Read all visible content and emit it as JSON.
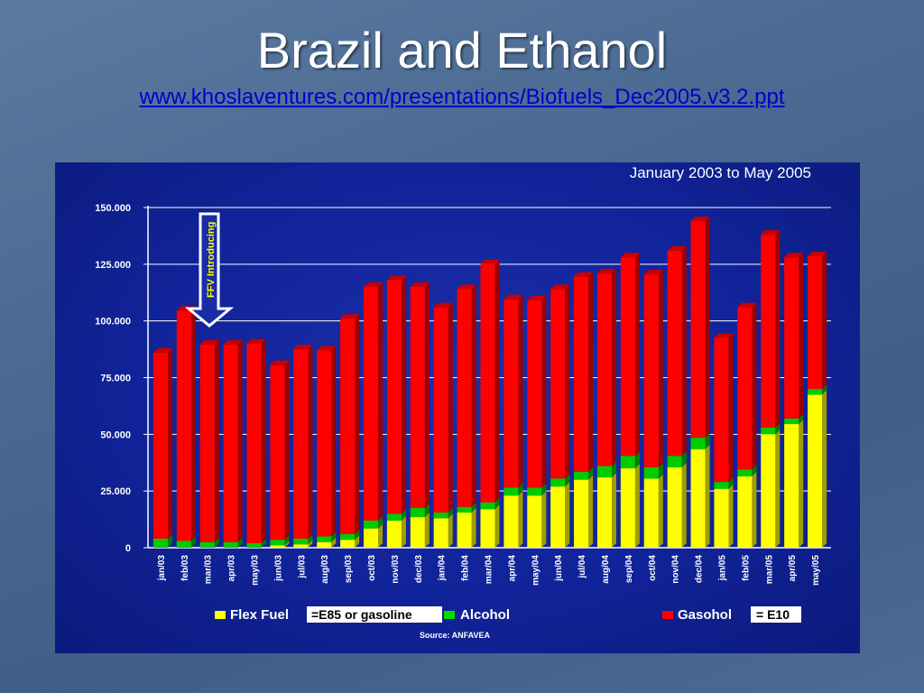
{
  "slide": {
    "title": "Brazil and Ethanol",
    "link": "www.khoslaventures.com/presentations/Biofuels_Dec2005.v3.2.ppt"
  },
  "chart_data": {
    "type": "bar",
    "stacked": true,
    "title": "January 2003 to May 2005",
    "source": "Source: ANFAVEA",
    "annotation": "FFV Introducing",
    "ylim": [
      0,
      150000
    ],
    "yticks": [
      "0",
      "25.000",
      "50.000",
      "75.000",
      "100.000",
      "125.000",
      "150.000"
    ],
    "categories": [
      "jan/03",
      "feb/03",
      "mar/03",
      "apr/03",
      "may/03",
      "jun/03",
      "jul/03",
      "aug/03",
      "sep/03",
      "oct/03",
      "nov/03",
      "dec/03",
      "jan/04",
      "feb/04",
      "mar/04",
      "apr/04",
      "may/04",
      "jun/04",
      "jul/04",
      "aug/04",
      "sep/04",
      "oct/04",
      "nov/04",
      "dec/04",
      "jan/05",
      "feb/05",
      "mar/05",
      "apr/05",
      "may/05"
    ],
    "series": [
      {
        "name": "Flex Fuel",
        "color": "#ffff00",
        "values": [
          0,
          0,
          0,
          0,
          0,
          1000,
          1500,
          2500,
          3500,
          8500,
          12000,
          13500,
          13000,
          15500,
          17000,
          23000,
          23000,
          27000,
          30000,
          31000,
          35000,
          30500,
          35500,
          43500,
          26000,
          31500,
          50000,
          54500,
          67500
        ]
      },
      {
        "name": "Alcohol",
        "color": "#00cc00",
        "values": [
          4000,
          3000,
          2500,
          2500,
          2000,
          2500,
          2500,
          2500,
          2500,
          3500,
          3000,
          4000,
          2500,
          2500,
          3000,
          3500,
          3500,
          3500,
          3500,
          5000,
          5500,
          5000,
          5000,
          5000,
          3000,
          3000,
          3000,
          2500,
          2500
        ]
      },
      {
        "name": "Gasohol",
        "color": "#ff0000",
        "values": [
          82000,
          101500,
          87000,
          87000,
          88000,
          77000,
          83500,
          82000,
          95000,
          103000,
          103000,
          97500,
          90500,
          96000,
          105000,
          83000,
          82500,
          83500,
          86000,
          85000,
          87500,
          85000,
          90500,
          95500,
          63500,
          71500,
          85000,
          71000,
          58500
        ]
      }
    ],
    "legend": {
      "flex_label": "Flex Fuel",
      "flex_note": "=E85 or gasoline",
      "alcohol_label": "Alcohol",
      "gasohol_label": "Gasohol",
      "gasohol_note": "= E10"
    }
  }
}
